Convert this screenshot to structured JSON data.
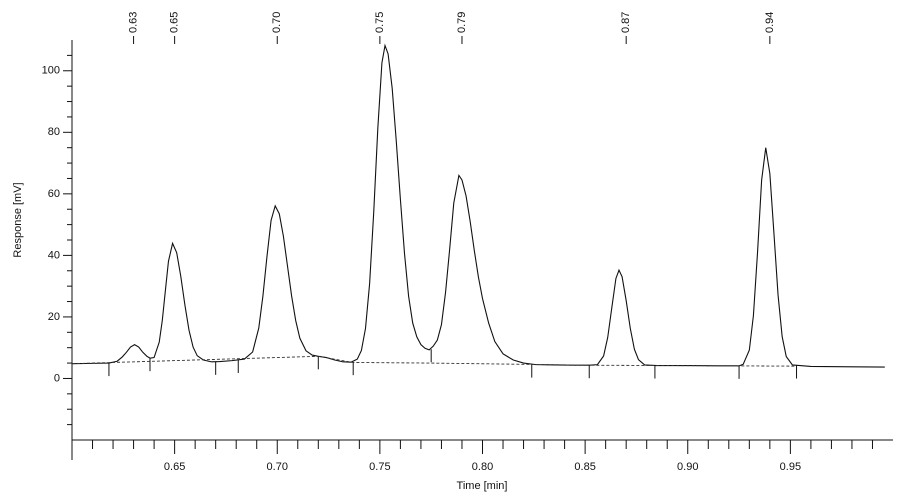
{
  "chart_data": {
    "type": "line",
    "xlabel": "Time [min]",
    "ylabel": "Response [mV]",
    "xlim": [
      0.6,
      1.0
    ],
    "ylim": [
      -20,
      110
    ],
    "xticks": [
      0.65,
      {
        "value": 0.7,
        "label": "0.70"
      },
      0.75,
      {
        "value": 0.8,
        "label": "0.80"
      },
      0.85,
      {
        "value": 0.9,
        "label": "0.90"
      },
      0.95
    ],
    "xticks_minor": [
      0.61,
      0.62,
      0.63,
      0.64,
      0.66,
      0.67,
      0.68,
      0.69,
      0.71,
      0.72,
      0.73,
      0.74,
      0.76,
      0.77,
      0.78,
      0.79,
      0.81,
      0.82,
      0.83,
      0.84,
      0.86,
      0.87,
      0.88,
      0.89,
      0.91,
      0.92,
      0.93,
      0.94,
      0.96,
      0.97,
      0.98,
      0.99
    ],
    "yticks": [
      0,
      20,
      40,
      60,
      80,
      100
    ],
    "yticks_minor": [
      -15,
      -10,
      -5,
      5,
      10,
      15,
      25,
      30,
      35,
      45,
      50,
      55,
      65,
      70,
      75,
      85,
      90,
      95,
      105
    ],
    "peak_labels": [
      {
        "x": 0.63,
        "label": "0.63"
      },
      {
        "x": 0.65,
        "label": "0.65"
      },
      {
        "x": 0.7,
        "label": "0.70"
      },
      {
        "x": 0.75,
        "label": "0.75"
      },
      {
        "x": 0.79,
        "label": "0.79"
      },
      {
        "x": 0.87,
        "label": "0.87"
      },
      {
        "x": 0.94,
        "label": "0.94"
      }
    ],
    "series": [
      {
        "color": "#111111",
        "dash": false,
        "x": [
          0.6,
          0.61,
          0.618,
          0.622,
          0.6245,
          0.6265,
          0.6285,
          0.6305,
          0.6325,
          0.6345,
          0.6365,
          0.638,
          0.64,
          0.6425,
          0.644,
          0.6455,
          0.647,
          0.649,
          0.651,
          0.653,
          0.655,
          0.657,
          0.659,
          0.661,
          0.664,
          0.668,
          0.672,
          0.678,
          0.684,
          0.688,
          0.691,
          0.693,
          0.695,
          0.697,
          0.699,
          0.701,
          0.703,
          0.705,
          0.707,
          0.709,
          0.711,
          0.714,
          0.717,
          0.72,
          0.724,
          0.728,
          0.732,
          0.736,
          0.739,
          0.741,
          0.743,
          0.745,
          0.747,
          0.749,
          0.751,
          0.7525,
          0.754,
          0.756,
          0.758,
          0.76,
          0.762,
          0.764,
          0.766,
          0.768,
          0.77,
          0.772,
          0.774,
          0.776,
          0.778,
          0.78,
          0.782,
          0.784,
          0.786,
          0.7885,
          0.79,
          0.792,
          0.794,
          0.796,
          0.798,
          0.8,
          0.803,
          0.806,
          0.81,
          0.815,
          0.82,
          0.826,
          0.835,
          0.845,
          0.852,
          0.856,
          0.859,
          0.861,
          0.863,
          0.865,
          0.8665,
          0.868,
          0.87,
          0.872,
          0.874,
          0.876,
          0.879,
          0.885,
          0.9,
          0.915,
          0.925,
          0.927,
          0.93,
          0.932,
          0.934,
          0.936,
          0.938,
          0.94,
          0.942,
          0.944,
          0.946,
          0.948,
          0.951,
          0.96,
          0.98,
          0.996
        ],
        "values": [
          4.8,
          4.9,
          5.0,
          5.6,
          7.0,
          8.5,
          10.2,
          11.0,
          10.2,
          8.5,
          7.2,
          6.6,
          6.8,
          11.8,
          18.9,
          28.6,
          38.1,
          43.9,
          40.9,
          33.2,
          23.9,
          15.7,
          10.2,
          7.4,
          6.0,
          5.4,
          5.5,
          5.8,
          6.3,
          8.6,
          16.4,
          26.7,
          39.7,
          51.4,
          56.1,
          53.5,
          46.2,
          36.5,
          26.8,
          18.8,
          13.1,
          9.0,
          7.6,
          7.2,
          6.8,
          6.0,
          5.4,
          5.3,
          6.3,
          9.1,
          16.3,
          30.8,
          54.0,
          81.3,
          102.6,
          108.2,
          105.5,
          94.3,
          77.0,
          58.2,
          40.6,
          26.7,
          18.0,
          13.5,
          11.0,
          9.8,
          9.3,
          10.5,
          12.5,
          17.5,
          28.0,
          42.0,
          57.0,
          66.0,
          64.5,
          59.3,
          51.0,
          41.6,
          33.0,
          26.0,
          18.0,
          12.0,
          8.0,
          6.0,
          5.0,
          4.5,
          4.4,
          4.3,
          4.3,
          4.5,
          7.3,
          13.3,
          23.0,
          32.5,
          35.2,
          33.1,
          25.3,
          16.3,
          9.5,
          6.1,
          4.4,
          4.2,
          4.2,
          4.1,
          4.1,
          4.6,
          9.2,
          20.5,
          41.0,
          64.5,
          75.0,
          66.6,
          47.1,
          27.1,
          13.6,
          7.1,
          4.4,
          3.9,
          3.8,
          3.7
        ]
      },
      {
        "color": "#333333",
        "dash": true,
        "x": [
          0.6,
          0.72,
          0.737,
          0.775,
          0.853,
          0.953
        ],
        "values": [
          4.8,
          7.2,
          5.2,
          5.0,
          4.3,
          4.0
        ]
      }
    ],
    "boundary_marks": {
      "x": [
        0.618,
        0.638,
        0.67,
        0.681,
        0.72,
        0.737,
        0.775,
        0.824,
        0.852,
        0.884,
        0.925,
        0.953
      ],
      "y": [
        5.0,
        6.6,
        5.4,
        6.0,
        7.2,
        5.3,
        9.5,
        4.5,
        4.3,
        4.2,
        4.1,
        4.2
      ]
    }
  }
}
